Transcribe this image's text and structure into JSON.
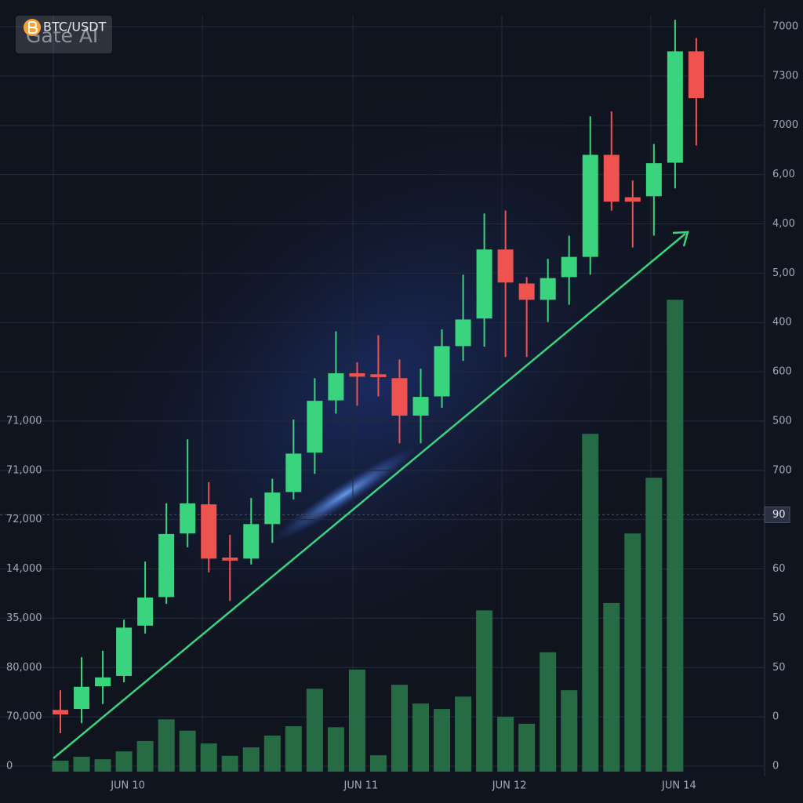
{
  "chart_data": {
    "type": "candlestick",
    "title": "BTC/USDT",
    "watermark": "Gate AI",
    "categories": [
      null,
      null,
      null,
      "JUN 10",
      null,
      null,
      null,
      null,
      null,
      null,
      null,
      null,
      null,
      null,
      "JUN 11",
      null,
      null,
      null,
      null,
      null,
      null,
      "JUN 12",
      null,
      null,
      null,
      null,
      null,
      null,
      null,
      "JUN 14",
      null
    ],
    "open": [
      1.14,
      1.16,
      1.62,
      1.83,
      2.85,
      3.43,
      4.72,
      5.31,
      4.23,
      4.21,
      4.91,
      5.56,
      6.36,
      7.42,
      7.97,
      7.95,
      7.87,
      7.11,
      7.5,
      8.52,
      9.08,
      10.48,
      9.79,
      9.46,
      9.92,
      10.33,
      12.4,
      11.54,
      11.56,
      12.24,
      14.5
    ],
    "high": [
      1.54,
      2.21,
      2.34,
      2.97,
      4.15,
      5.33,
      6.63,
      5.76,
      4.69,
      5.44,
      5.83,
      7.03,
      7.87,
      8.82,
      8.19,
      8.74,
      8.25,
      8.06,
      8.86,
      9.97,
      11.21,
      11.27,
      9.92,
      10.29,
      10.76,
      13.18,
      13.28,
      11.88,
      12.62,
      15.14,
      14.77
    ],
    "low": [
      0.67,
      0.87,
      1.26,
      1.7,
      2.69,
      3.29,
      4.44,
      3.93,
      3.35,
      4.09,
      4.53,
      5.41,
      5.93,
      7.15,
      7.31,
      7.5,
      6.55,
      6.55,
      7.27,
      8.22,
      8.51,
      8.3,
      8.3,
      9.01,
      9.36,
      9.97,
      11.27,
      10.52,
      10.76,
      11.72,
      12.59
    ],
    "close": [
      1.05,
      1.61,
      1.8,
      2.81,
      3.42,
      4.71,
      5.33,
      4.21,
      4.17,
      4.91,
      5.55,
      6.34,
      7.41,
      7.97,
      7.9,
      7.89,
      7.11,
      7.49,
      8.52,
      9.06,
      10.48,
      9.81,
      9.46,
      9.9,
      10.33,
      12.4,
      11.45,
      11.45,
      12.23,
      14.5,
      13.55
    ],
    "volume": [
      0.11,
      0.19,
      0.14,
      0.3,
      0.51,
      0.95,
      0.72,
      0.46,
      0.21,
      0.38,
      0.62,
      0.81,
      1.57,
      0.79,
      1.96,
      0.22,
      1.65,
      1.27,
      1.16,
      1.41,
      3.16,
      1.0,
      0.86,
      2.31,
      1.54,
      6.74,
      3.31,
      4.72,
      5.85,
      9.46,
      null
    ],
    "up_color": "#3ad47e",
    "down_color": "#ee5350",
    "volume_color": "#2c7a4c",
    "ylim": [
      0,
      15
    ],
    "yticks": [
      0,
      {
        "value": 1,
        "label": "70,000"
      },
      {
        "value": 2,
        "label": "80,000"
      },
      {
        "value": 3,
        "label": "35,000"
      },
      {
        "value": 4,
        "label": "14,000"
      },
      {
        "value": 5,
        "label": "72,000"
      },
      {
        "value": 6,
        "label": "71,000"
      },
      {
        "value": 7,
        "label": "71,000"
      }
    ],
    "y2lim": [
      0,
      15
    ],
    "y2ticks": [
      0,
      {
        "value": 1,
        "label": "0"
      },
      {
        "value": 2,
        "label": "50"
      },
      {
        "value": 3,
        "label": "50"
      },
      {
        "value": 4,
        "label": "60"
      },
      {
        "value": 6,
        "label": "700"
      },
      {
        "value": 7,
        "label": "500"
      },
      {
        "value": 8,
        "label": "600"
      },
      {
        "value": 9,
        "label": "400"
      },
      {
        "value": 10,
        "label": "5,00"
      },
      {
        "value": 11,
        "label": "4,00"
      },
      {
        "value": 12,
        "label": "6,00"
      },
      {
        "value": 13,
        "label": "7000"
      },
      {
        "value": 14,
        "label": "7300"
      },
      {
        "value": 15,
        "label": "7000"
      }
    ],
    "price_line": {
      "value": 5.1,
      "label": "90"
    },
    "grid": true
  }
}
